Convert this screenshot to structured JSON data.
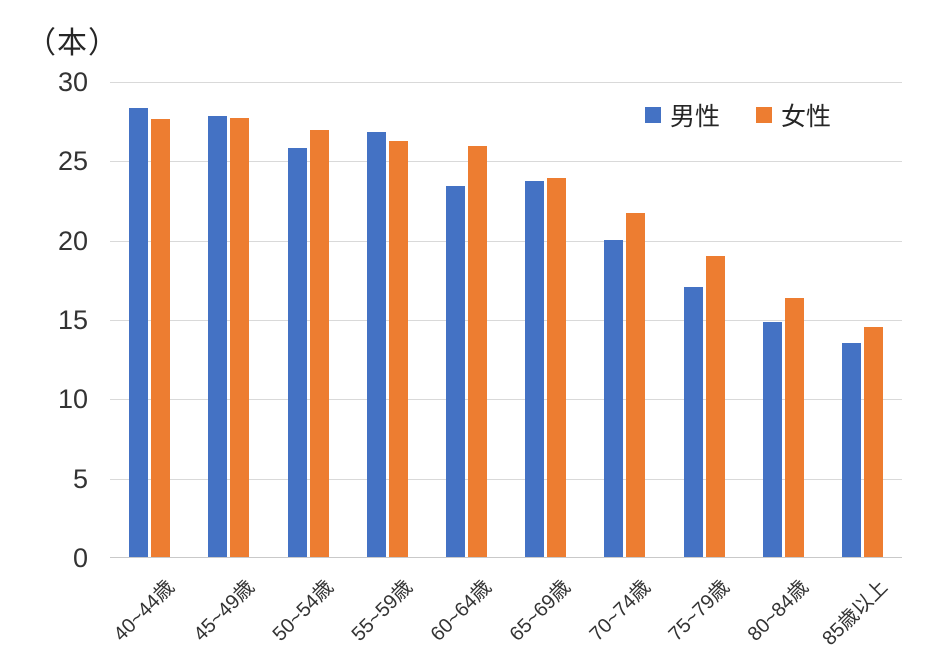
{
  "unit_label": "（本）",
  "legend": [
    {
      "label": "男性",
      "color": "#4472C4"
    },
    {
      "label": "女性",
      "color": "#ED7D31"
    }
  ],
  "chart_data": {
    "type": "bar",
    "title": "",
    "ylabel": "（本）",
    "xlabel": "",
    "categories": [
      "40~44歳",
      "45~49歳",
      "50~54歳",
      "55~59歳",
      "60~64歳",
      "65~69歳",
      "70~74歳",
      "75~79歳",
      "80~84歳",
      "85歳以上"
    ],
    "series": [
      {
        "name": "男性",
        "color": "#4472C4",
        "values": [
          28.3,
          27.8,
          25.8,
          26.8,
          23.4,
          23.7,
          20.0,
          17.0,
          14.8,
          13.5
        ]
      },
      {
        "name": "女性",
        "color": "#ED7D31",
        "values": [
          27.6,
          27.7,
          26.9,
          26.2,
          25.9,
          23.9,
          21.7,
          19.0,
          16.3,
          14.5
        ]
      }
    ],
    "ylim": [
      0,
      30
    ],
    "yticks": [
      0,
      5,
      10,
      15,
      20,
      25,
      30
    ],
    "grid": true,
    "legend_position": "top-right",
    "gridline_color": "#D9D9D9"
  }
}
